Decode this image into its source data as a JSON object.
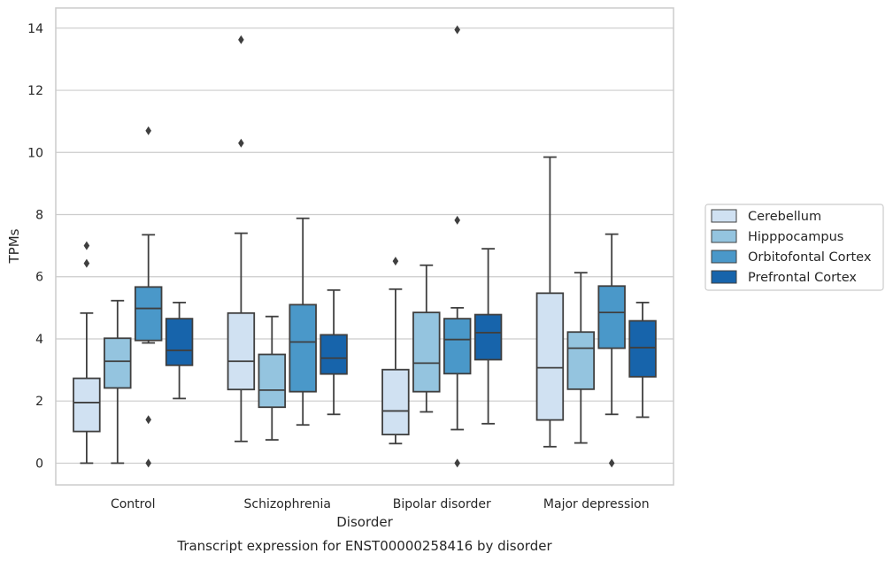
{
  "chart_data": {
    "type": "box",
    "title": "",
    "xlabel": "Disorder",
    "ylabel": "TPMs",
    "caption": "Transcript expression for ENST00000258416 by disorder",
    "ylim": [
      -0.7,
      14.65
    ],
    "yticks": [
      0,
      2,
      4,
      6,
      8,
      10,
      12,
      14
    ],
    "grid": "horizontal",
    "legend_position": "right",
    "categories": [
      "Control",
      "Schizophrenia",
      "Bipolar disorder",
      "Major depression"
    ],
    "series": [
      {
        "name": "Cerebellum",
        "color": "#d0e1f2",
        "boxes": [
          {
            "whisker_low": 0.0,
            "q1": 1.02,
            "median": 1.95,
            "q3": 2.73,
            "whisker_high": 4.83,
            "outliers": [
              6.43,
              7.0
            ]
          },
          {
            "whisker_low": 0.7,
            "q1": 2.37,
            "median": 3.28,
            "q3": 4.83,
            "whisker_high": 7.4,
            "outliers": [
              10.3,
              13.63
            ]
          },
          {
            "whisker_low": 0.63,
            "q1": 0.92,
            "median": 1.68,
            "q3": 3.01,
            "whisker_high": 5.6,
            "outliers": [
              6.5
            ]
          },
          {
            "whisker_low": 0.53,
            "q1": 1.39,
            "median": 3.07,
            "q3": 5.47,
            "whisker_high": 9.85,
            "outliers": []
          }
        ]
      },
      {
        "name": "Hipppocampus",
        "color": "#94c4df",
        "boxes": [
          {
            "whisker_low": 0.0,
            "q1": 2.42,
            "median": 3.28,
            "q3": 4.02,
            "whisker_high": 5.23,
            "outliers": []
          },
          {
            "whisker_low": 0.75,
            "q1": 1.8,
            "median": 2.35,
            "q3": 3.5,
            "whisker_high": 4.72,
            "outliers": []
          },
          {
            "whisker_low": 1.65,
            "q1": 2.3,
            "median": 3.22,
            "q3": 4.85,
            "whisker_high": 6.37,
            "outliers": []
          },
          {
            "whisker_low": 0.65,
            "q1": 2.38,
            "median": 3.7,
            "q3": 4.22,
            "whisker_high": 6.13,
            "outliers": []
          }
        ]
      },
      {
        "name": "Orbitofontal Cortex",
        "color": "#4a98c9",
        "boxes": [
          {
            "whisker_low": 3.87,
            "q1": 3.95,
            "median": 4.98,
            "q3": 5.67,
            "whisker_high": 7.35,
            "outliers": [
              0.0,
              1.4,
              10.7
            ]
          },
          {
            "whisker_low": 1.23,
            "q1": 2.3,
            "median": 3.9,
            "q3": 5.1,
            "whisker_high": 7.88,
            "outliers": []
          },
          {
            "whisker_low": 1.08,
            "q1": 2.88,
            "median": 3.98,
            "q3": 4.65,
            "whisker_high": 5.0,
            "outliers": [
              0.0,
              7.82,
              13.95
            ]
          },
          {
            "whisker_low": 1.57,
            "q1": 3.7,
            "median": 4.85,
            "q3": 5.7,
            "whisker_high": 7.37,
            "outliers": [
              0.0
            ]
          }
        ]
      },
      {
        "name": "Prefrontal Cortex",
        "color": "#1764ab",
        "boxes": [
          {
            "whisker_low": 2.08,
            "q1": 3.15,
            "median": 3.63,
            "q3": 4.65,
            "whisker_high": 5.17,
            "outliers": []
          },
          {
            "whisker_low": 1.57,
            "q1": 2.87,
            "median": 3.38,
            "q3": 4.13,
            "whisker_high": 5.57,
            "outliers": []
          },
          {
            "whisker_low": 1.27,
            "q1": 3.33,
            "median": 4.2,
            "q3": 4.78,
            "whisker_high": 6.9,
            "outliers": []
          },
          {
            "whisker_low": 1.48,
            "q1": 2.78,
            "median": 3.72,
            "q3": 4.58,
            "whisker_high": 5.17,
            "outliers": []
          }
        ]
      }
    ],
    "colors": {
      "grid": "#cccccc",
      "frame": "#cccccc",
      "box_edge": "#3f3f3f",
      "legend_edge": "#cccccc"
    }
  }
}
